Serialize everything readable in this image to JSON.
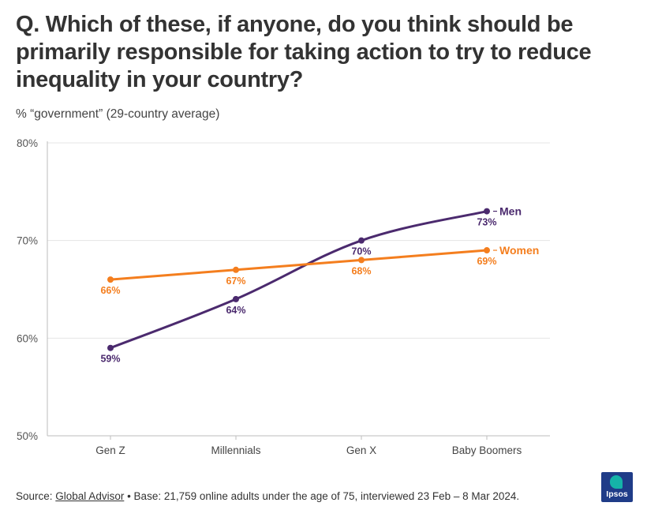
{
  "header": {
    "title": "Q. Which of these, if anyone, do you think should be primarily responsible for taking action to try to reduce inequality in your country?",
    "subtitle": "% “government” (29-country average)"
  },
  "chart_data": {
    "type": "line",
    "title": "Q. Which of these, if anyone, do you think should be primarily responsible for taking action to try to reduce inequality in your country?",
    "subtitle": "% “government” (29-country average)",
    "categories": [
      "Gen Z",
      "Millennials",
      "Gen X",
      "Baby Boomers"
    ],
    "ylim": [
      50,
      80
    ],
    "yticks": [
      50,
      60,
      70,
      80
    ],
    "ytick_labels": [
      "50%",
      "60%",
      "70%",
      "80%"
    ],
    "grid": true,
    "legend": "inline labels at line ends",
    "series": [
      {
        "name": "Men",
        "color": "#4b2a6e",
        "values": [
          59,
          64,
          70,
          73
        ],
        "labels": [
          "59%",
          "64%",
          "70%",
          "73%"
        ],
        "label_positions": [
          "below",
          "below",
          "above",
          "below"
        ]
      },
      {
        "name": "Women",
        "color": "#f47e1e",
        "values": [
          66,
          67,
          68,
          69
        ],
        "labels": [
          "66%",
          "67%",
          "68%",
          "69%"
        ],
        "label_positions": [
          "below",
          "below",
          "below",
          "below"
        ]
      }
    ]
  },
  "footer": {
    "source_prefix": "Source: ",
    "source_link": "Global Advisor",
    "source_rest": " • Base: 21,759 online adults under the age of 75, interviewed 23 Feb – 8 Mar 2024."
  },
  "logo": {
    "text": "Ipsos"
  }
}
